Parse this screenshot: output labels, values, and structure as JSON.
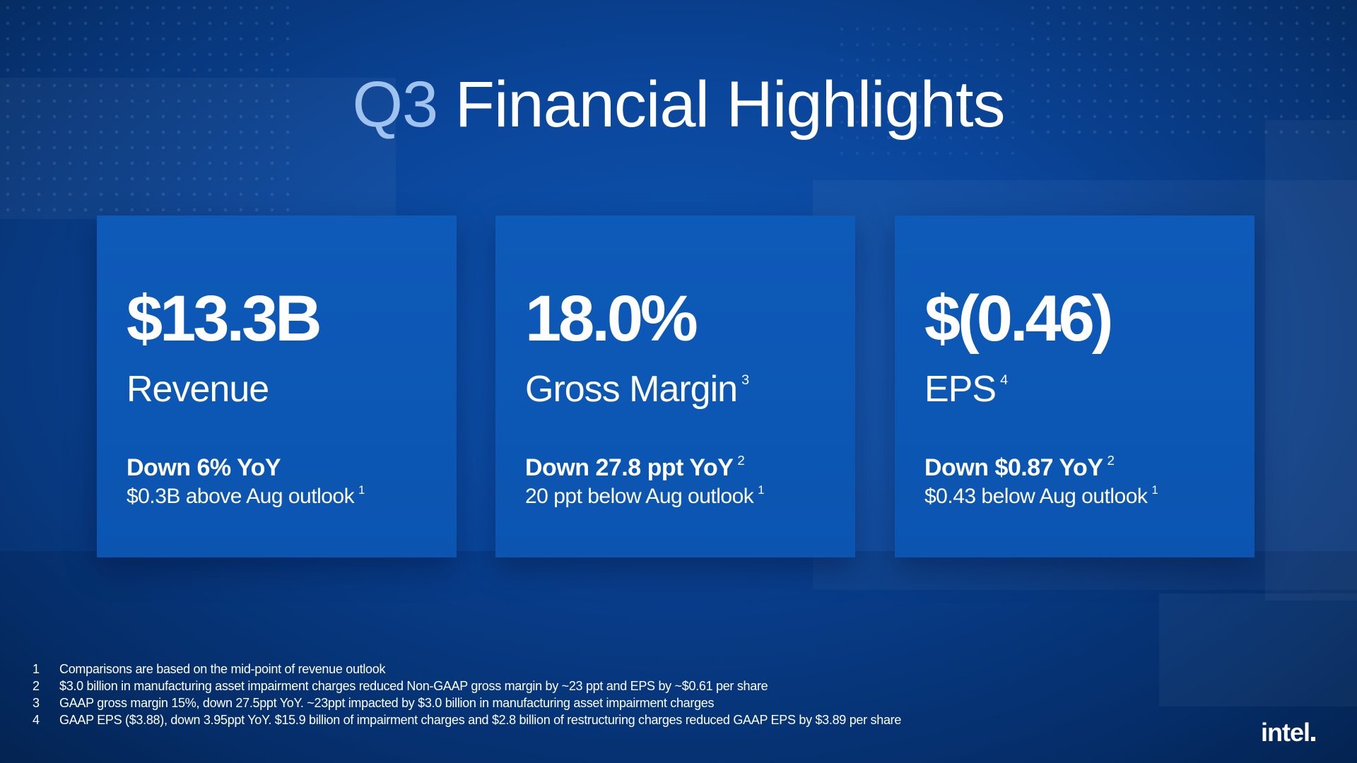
{
  "title": {
    "prefix": "Q3",
    "rest": "Financial Highlights"
  },
  "cards": [
    {
      "value": "$13.3B",
      "label": "Revenue",
      "label_note": "",
      "delta": "Down 6% YoY",
      "delta_note": "",
      "outlook": "$0.3B above Aug outlook",
      "outlook_note": "1"
    },
    {
      "value": "18.0%",
      "label": "Gross Margin",
      "label_note": "3",
      "delta": "Down 27.8 ppt YoY",
      "delta_note": "2",
      "outlook": "20 ppt below Aug outlook",
      "outlook_note": "1"
    },
    {
      "value": "$(0.46)",
      "label": "EPS",
      "label_note": "4",
      "delta": "Down $0.87 YoY",
      "delta_note": "2",
      "outlook": "$0.43 below Aug outlook",
      "outlook_note": "1"
    }
  ],
  "footnotes": [
    {
      "num": "1",
      "text": "Comparisons are based on the mid-point of revenue outlook"
    },
    {
      "num": "2",
      "text": "$3.0 billion in manufacturing asset impairment charges reduced Non-GAAP gross margin by ~23 ppt and EPS by ~$0.61 per share"
    },
    {
      "num": "3",
      "text": "GAAP gross margin 15%, down 27.5ppt YoY. ~23ppt impacted by $3.0 billion in manufacturing asset impairment charges"
    },
    {
      "num": "4",
      "text": "GAAP EPS ($3.88), down 3.95ppt YoY. $15.9 billion of impairment charges and $2.8 billion of restructuring charges reduced GAAP EPS by $3.89 per share"
    }
  ],
  "logo": "intel",
  "colors": {
    "background": "#0a459a",
    "card": "#0b55b1",
    "title_accent": "#9fc3ee",
    "text": "#ffffff"
  }
}
